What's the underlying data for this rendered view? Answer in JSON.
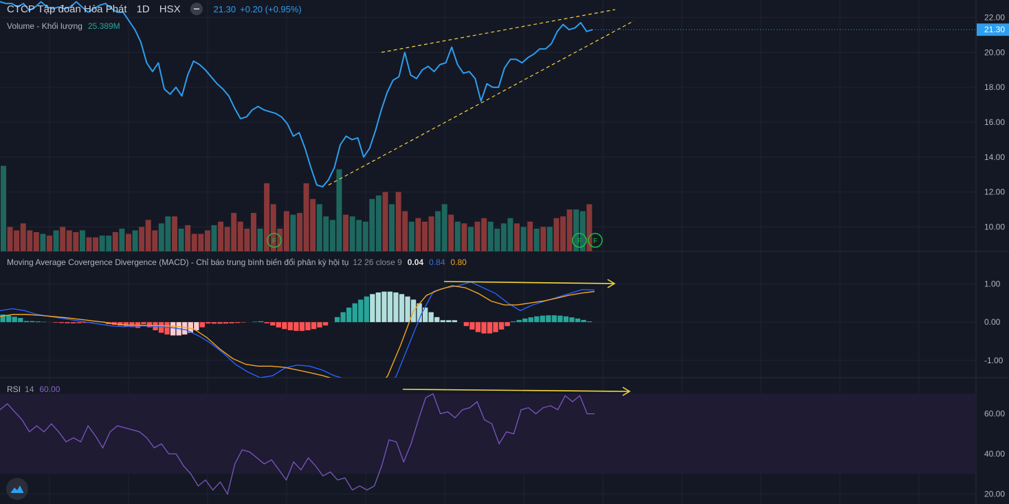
{
  "header": {
    "symbol": "CTCP Tập đoàn Hòa Phát",
    "interval": "1D",
    "exchange": "HSX",
    "price": "21.30",
    "change": "+0.20 (+0.95%)",
    "volume_label": "Volume - Khối lượng",
    "volume_value": "25.389M"
  },
  "macd": {
    "label": "Moving Average Covergence Divergence (MACD) - Chỉ báo trung bình biến đổi phân kỳ hội tụ",
    "params": "12 26 close 9",
    "hist": "0.04",
    "macd": "0.84",
    "signal": "0.80"
  },
  "rsi": {
    "label": "RSI",
    "period": "14",
    "value": "60.00"
  },
  "price_axis": {
    "ticks": [
      "22.00",
      "20.00",
      "18.00",
      "16.00",
      "14.00",
      "12.00",
      "10.00"
    ],
    "last_price_badge": "21.30"
  },
  "macd_axis": {
    "ticks": [
      "1.00",
      "0.00",
      "-1.00"
    ]
  },
  "rsi_axis": {
    "ticks": [
      "60.00",
      "40.00",
      "20.00"
    ]
  },
  "colors": {
    "background": "#141824",
    "price_line": "#2e9ef0",
    "volume_up": "#26a69a",
    "volume_down": "#ef5350",
    "macd_line": "#2962ff",
    "signal_line": "#f5a623",
    "rsi_line": "#7e57c2",
    "annotation": "#f5d742"
  },
  "icons": [
    "minus-icon",
    "logo-icon",
    "event-flag-icon"
  ],
  "chart_data": [
    {
      "type": "line",
      "name": "price",
      "ylim": [
        9,
        22.8
      ],
      "values": [
        22.9,
        22.8,
        22.8,
        22.6,
        22.8,
        22.4,
        22.6,
        22.9,
        22.6,
        22.5,
        22.6,
        22.5,
        22.6,
        22.9,
        22.6,
        22.3,
        22.5,
        22.7,
        22.8,
        22.5,
        22.3,
        22.3,
        21.8,
        21.3,
        20.6,
        19.4,
        18.9,
        19.4,
        17.9,
        17.6,
        18.0,
        17.5,
        18.7,
        19.5,
        19.3,
        19.0,
        18.6,
        18.2,
        17.9,
        17.5,
        16.8,
        16.2,
        16.3,
        16.7,
        16.9,
        16.7,
        16.6,
        16.5,
        16.3,
        15.9,
        15.2,
        15.4,
        14.5,
        13.4,
        12.4,
        12.3,
        12.7,
        13.4,
        14.7,
        15.2,
        15.0,
        15.1,
        14.0,
        14.5,
        15.5,
        16.7,
        17.7,
        18.4,
        18.6,
        20.0,
        18.7,
        18.5,
        19.0,
        19.2,
        18.9,
        19.3,
        19.4,
        20.3,
        19.3,
        18.8,
        18.9,
        18.5,
        17.2,
        18.2,
        18.0,
        18.0,
        19.1,
        19.6,
        19.6,
        19.4,
        19.7,
        19.9,
        20.2,
        20.2,
        20.5,
        21.2,
        21.6,
        21.3,
        21.4,
        21.7,
        21.2,
        21.3
      ],
      "volume": [
        [
          13.5,
          1
        ],
        [
          10.0,
          0
        ],
        [
          9.8,
          0
        ],
        [
          10.2,
          0
        ],
        [
          9.8,
          0
        ],
        [
          9.7,
          0
        ],
        [
          9.6,
          1
        ],
        [
          9.5,
          0
        ],
        [
          9.8,
          1
        ],
        [
          10.0,
          0
        ],
        [
          9.8,
          0
        ],
        [
          9.7,
          0
        ],
        [
          9.8,
          1
        ],
        [
          9.4,
          0
        ],
        [
          9.4,
          0
        ],
        [
          9.5,
          1
        ],
        [
          9.5,
          1
        ],
        [
          9.7,
          0
        ],
        [
          9.9,
          1
        ],
        [
          9.6,
          0
        ],
        [
          9.8,
          1
        ],
        [
          10.0,
          0
        ],
        [
          10.4,
          0
        ],
        [
          9.8,
          0
        ],
        [
          10.2,
          1
        ],
        [
          10.6,
          1
        ],
        [
          10.6,
          0
        ],
        [
          9.9,
          1
        ],
        [
          10.1,
          0
        ],
        [
          9.6,
          0
        ],
        [
          9.6,
          0
        ],
        [
          9.8,
          0
        ],
        [
          10.1,
          1
        ],
        [
          10.3,
          0
        ],
        [
          10.0,
          0
        ],
        [
          10.8,
          0
        ],
        [
          10.3,
          0
        ],
        [
          9.9,
          0
        ],
        [
          10.8,
          0
        ],
        [
          9.9,
          1
        ],
        [
          12.5,
          0
        ],
        [
          11.3,
          0
        ],
        [
          9.9,
          0
        ],
        [
          10.9,
          0
        ],
        [
          10.7,
          1
        ],
        [
          10.8,
          0
        ],
        [
          12.5,
          0
        ],
        [
          11.6,
          0
        ],
        [
          11.3,
          1
        ],
        [
          10.6,
          1
        ],
        [
          10.4,
          1
        ],
        [
          13.3,
          1
        ],
        [
          10.7,
          0
        ],
        [
          10.6,
          1
        ],
        [
          10.4,
          1
        ],
        [
          10.3,
          1
        ],
        [
          11.6,
          1
        ],
        [
          11.8,
          1
        ],
        [
          12.0,
          0
        ],
        [
          11.3,
          1
        ],
        [
          12.0,
          0
        ],
        [
          10.9,
          0
        ],
        [
          10.3,
          1
        ],
        [
          10.5,
          0
        ],
        [
          10.3,
          0
        ],
        [
          10.6,
          0
        ],
        [
          10.9,
          1
        ],
        [
          11.3,
          1
        ],
        [
          10.7,
          0
        ],
        [
          10.3,
          1
        ],
        [
          10.2,
          0
        ],
        [
          10.0,
          1
        ],
        [
          10.3,
          0
        ],
        [
          10.5,
          0
        ],
        [
          10.3,
          1
        ],
        [
          9.9,
          1
        ],
        [
          10.2,
          1
        ],
        [
          10.5,
          1
        ],
        [
          10.2,
          0
        ],
        [
          10.0,
          1
        ],
        [
          10.3,
          0
        ],
        [
          9.9,
          1
        ],
        [
          10.0,
          0
        ],
        [
          10.0,
          1
        ],
        [
          10.5,
          0
        ],
        [
          10.6,
          0
        ],
        [
          11.0,
          0
        ],
        [
          11.0,
          1
        ],
        [
          10.9,
          1
        ],
        [
          11.3,
          0
        ]
      ],
      "trendlines": "rising wedge (yellow dashed)"
    },
    {
      "type": "line",
      "name": "MACD",
      "ylim": [
        -1.4,
        1.6
      ],
      "macd": [
        0.3,
        0.35,
        0.3,
        0.2,
        0.15,
        0.1,
        0.05,
        0.0,
        -0.05,
        -0.1,
        -0.12,
        -0.1,
        -0.1,
        -0.12,
        -0.15,
        -0.2,
        -0.35,
        -0.55,
        -0.8,
        -1.1,
        -1.3,
        -1.45,
        -1.4,
        -1.2,
        -1.12,
        -1.15,
        -1.25,
        -1.4,
        -1.5,
        -1.65,
        -1.8,
        -1.9,
        -1.4,
        -0.6,
        0.2,
        0.8,
        0.9,
        0.95,
        1.05,
        0.9,
        0.75,
        0.5,
        0.3,
        0.45,
        0.55,
        0.65,
        0.75,
        0.85,
        0.84
      ],
      "signal": [
        0.15,
        0.2,
        0.2,
        0.18,
        0.15,
        0.12,
        0.08,
        0.04,
        0.0,
        -0.05,
        -0.08,
        -0.08,
        -0.09,
        -0.1,
        -0.12,
        -0.18,
        -0.4,
        -0.7,
        -0.95,
        -1.1,
        -1.15,
        -1.15,
        -1.18,
        -1.25,
        -1.32,
        -1.4,
        -1.5,
        -1.6,
        -1.7,
        -1.8,
        -1.4,
        -0.6,
        0.3,
        0.7,
        0.85,
        0.95,
        0.9,
        0.75,
        0.55,
        0.45,
        0.45,
        0.5,
        0.55,
        0.62,
        0.7,
        0.76,
        0.8
      ],
      "hist_sign": "positive green/teal in late half, negative red mid"
    },
    {
      "type": "line",
      "name": "RSI",
      "ylim": [
        18,
        75
      ],
      "bands": [
        30,
        70
      ],
      "values": [
        62,
        65,
        61,
        57,
        51,
        54,
        51,
        55,
        51,
        46,
        48,
        46,
        54,
        49,
        43,
        51,
        54,
        53,
        52,
        51,
        48,
        43,
        45,
        40,
        40,
        34,
        30,
        24,
        27,
        22,
        26,
        20,
        35,
        42,
        41,
        38,
        35,
        37,
        32,
        27,
        36,
        32,
        38,
        34,
        29,
        31,
        27,
        28,
        22,
        24,
        22,
        24,
        34,
        47,
        46,
        36,
        45,
        57,
        68,
        70,
        60,
        61,
        58,
        62,
        63,
        66,
        57,
        55,
        45,
        51,
        50,
        62,
        63,
        60,
        63,
        64,
        62,
        69,
        66,
        69,
        60,
        60
      ]
    }
  ]
}
